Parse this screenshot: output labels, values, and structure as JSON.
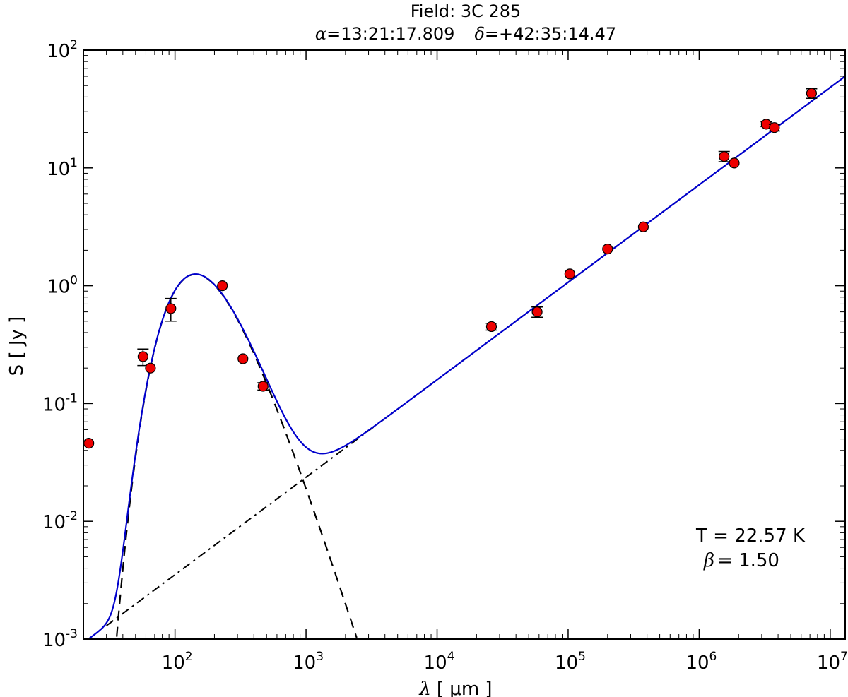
{
  "chart_data": {
    "type": "scatter",
    "title": "Field: 3C 285",
    "subtitle": {
      "alpha_symbol": "α",
      "alpha_value": "=13:21:17.809",
      "delta_symbol": "δ",
      "delta_value": "=+42:35:14.47"
    },
    "xlabel": {
      "symbol": "λ",
      "unit": "[ μm ]"
    },
    "ylabel": "S [ Jy ]",
    "xscale": "log",
    "yscale": "log",
    "xlim": [
      20,
      13000000
    ],
    "ylim": [
      0.001,
      100
    ],
    "x_ticks": [
      {
        "base": "10",
        "exp": "2",
        "value": 100
      },
      {
        "base": "10",
        "exp": "3",
        "value": 1000
      },
      {
        "base": "10",
        "exp": "4",
        "value": 10000
      },
      {
        "base": "10",
        "exp": "5",
        "value": 100000
      },
      {
        "base": "10",
        "exp": "6",
        "value": 1000000
      },
      {
        "base": "10",
        "exp": "7",
        "value": 10000000
      }
    ],
    "y_ticks": [
      {
        "base": "10",
        "exp": "-3",
        "value": 0.001
      },
      {
        "base": "10",
        "exp": "-2",
        "value": 0.01
      },
      {
        "base": "10",
        "exp": "-1",
        "value": 0.1
      },
      {
        "base": "10",
        "exp": "0",
        "value": 1
      },
      {
        "base": "10",
        "exp": "1",
        "value": 10
      },
      {
        "base": "10",
        "exp": "2",
        "value": 100
      }
    ],
    "points": [
      {
        "x": 22,
        "y": 0.046
      },
      {
        "x": 57,
        "y": 0.25,
        "err_lo": 0.21,
        "err_hi": 0.29
      },
      {
        "x": 65,
        "y": 0.2
      },
      {
        "x": 93,
        "y": 0.64,
        "err_lo": 0.5,
        "err_hi": 0.78
      },
      {
        "x": 230,
        "y": 1.0
      },
      {
        "x": 330,
        "y": 0.24
      },
      {
        "x": 470,
        "y": 0.14,
        "err_lo": 0.13,
        "err_hi": 0.15
      },
      {
        "x": 26000,
        "y": 0.45,
        "err_lo": 0.42,
        "err_hi": 0.48
      },
      {
        "x": 58000,
        "y": 0.6,
        "err_lo": 0.54,
        "err_hi": 0.66
      },
      {
        "x": 103000,
        "y": 1.26
      },
      {
        "x": 200000,
        "y": 2.05
      },
      {
        "x": 375000,
        "y": 3.16
      },
      {
        "x": 1550000,
        "y": 12.5,
        "err_lo": 11.3,
        "err_hi": 13.8
      },
      {
        "x": 1850000,
        "y": 11.0
      },
      {
        "x": 3250000,
        "y": 23.5,
        "err_lo": 22.4,
        "err_hi": 24.6
      },
      {
        "x": 3750000,
        "y": 22.0,
        "err_lo": 20.6,
        "err_hi": 23.4
      },
      {
        "x": 7200000,
        "y": 43.0,
        "err_lo": 39.0,
        "err_hi": 47.0
      }
    ],
    "model": {
      "T": 22.57,
      "beta": 1.5,
      "dust_peak": {
        "x": 145,
        "y": 1.25
      },
      "synchrotron": {
        "x0": 30,
        "y0": 0.0013,
        "x1": 13000000,
        "y1": 60
      }
    },
    "annotations": {
      "T_label": "T = 22.57 K",
      "beta_symbol": "β",
      "beta_value": "=  1.50"
    },
    "colors": {
      "total_fit": "#0000cc",
      "components": "#000000",
      "points": "#ee0000",
      "point_edge": "#000000"
    },
    "grid": false
  }
}
